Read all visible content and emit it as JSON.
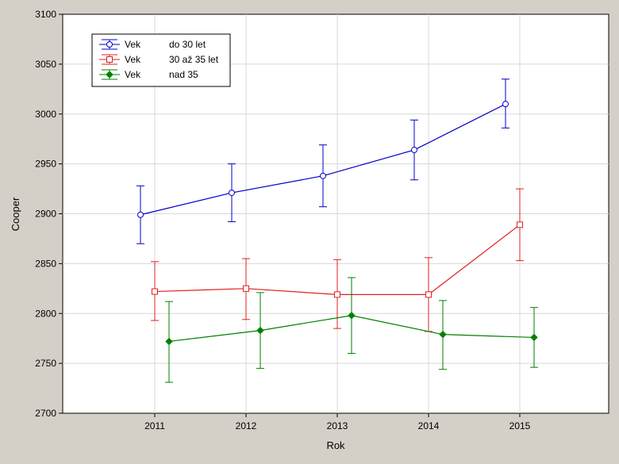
{
  "chart_data": {
    "type": "line",
    "title": "",
    "xlabel": "Rok",
    "ylabel": "Cooper",
    "categories": [
      "2011",
      "2012",
      "2013",
      "2014",
      "2015"
    ],
    "ylim": [
      2700,
      3100
    ],
    "yticks": [
      2700,
      2750,
      2800,
      2850,
      2900,
      2950,
      3000,
      3050,
      3100
    ],
    "grid": true,
    "legend_position": "top-left",
    "series": [
      {
        "legend_label": "Vek",
        "legend_value": "do 30 let",
        "color": "#0000c8",
        "marker": "circle",
        "values": [
          2899,
          2921,
          2938,
          2964,
          3010
        ],
        "err_low": [
          2870,
          2892,
          2907,
          2934,
          2986
        ],
        "err_high": [
          2928,
          2950,
          2969,
          2994,
          3035
        ]
      },
      {
        "legend_label": "Vek",
        "legend_value": "30 až 35 let",
        "color": "#e02020",
        "marker": "square",
        "values": [
          2822,
          2825,
          2819,
          2819,
          2889
        ],
        "err_low": [
          2793,
          2794,
          2785,
          2782,
          2853
        ],
        "err_high": [
          2852,
          2855,
          2854,
          2856,
          2925
        ]
      },
      {
        "legend_label": "Vek",
        "legend_value": "nad 35",
        "color": "#008000",
        "marker": "diamond",
        "values": [
          2772,
          2783,
          2798,
          2779,
          2776
        ],
        "err_low": [
          2731,
          2745,
          2760,
          2744,
          2746
        ],
        "err_high": [
          2812,
          2821,
          2836,
          2813,
          2806
        ]
      }
    ]
  }
}
